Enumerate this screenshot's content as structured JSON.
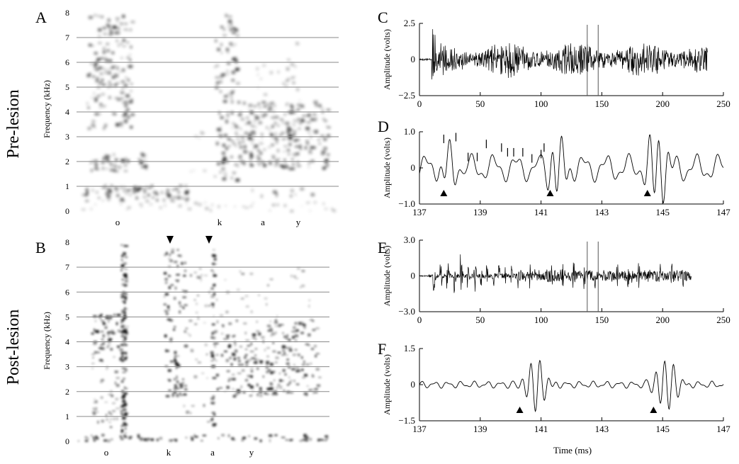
{
  "row_labels": {
    "pre": "Pre-lesion",
    "post": "Post-lesion"
  },
  "chart_data": [
    {
      "id": "A",
      "type": "heatmap",
      "panel_label": "A",
      "ylabel": "Frequency (kHz)",
      "ylim": [
        0,
        8
      ],
      "y_ticks": [
        "0",
        "1",
        "2",
        "3",
        "4",
        "5",
        "6",
        "7",
        "8"
      ],
      "segment_labels": [
        "o",
        "k",
        "a",
        "y"
      ],
      "grid": true
    },
    {
      "id": "B",
      "type": "heatmap",
      "panel_label": "B",
      "ylabel": "Frequency (kHz)",
      "ylim": [
        0,
        8
      ],
      "y_ticks": [
        "0",
        "1",
        "2",
        "3",
        "4",
        "5",
        "6",
        "7",
        "8"
      ],
      "segment_labels": [
        "o",
        "k",
        "a",
        "y"
      ],
      "grid": true
    },
    {
      "id": "C",
      "type": "line",
      "panel_label": "C",
      "ylabel": "Amplitude (volts)",
      "xlim": [
        0,
        250
      ],
      "ylim": [
        -2.5,
        2.5
      ],
      "x_ticks": [
        "0",
        "50",
        "100",
        "150",
        "200",
        "250"
      ],
      "y_ticks": [
        "2.5",
        "0",
        "−2.5"
      ],
      "signal_span_ms": [
        0,
        237
      ],
      "markers_ms": [
        138,
        147
      ]
    },
    {
      "id": "D",
      "type": "line",
      "panel_label": "D",
      "ylabel": "Amplitude (volts)",
      "xlim": [
        137,
        147
      ],
      "ylim": [
        -1.0,
        1.0
      ],
      "x_ticks": [
        "137",
        "139",
        "141",
        "143",
        "145",
        "147"
      ],
      "y_ticks": [
        "1.0",
        "0",
        "−1.0"
      ],
      "arrowheads_ms": [
        137.8,
        141.3,
        144.5
      ]
    },
    {
      "id": "E",
      "type": "line",
      "panel_label": "E",
      "ylabel": "Amplitude (volts)",
      "xlim": [
        0,
        250
      ],
      "ylim": [
        -3.0,
        3.0
      ],
      "x_ticks": [
        "0",
        "50",
        "100",
        "150",
        "200",
        "250"
      ],
      "y_ticks": [
        "3.0",
        "0",
        "−3.0"
      ],
      "signal_span_ms": [
        0,
        224
      ],
      "markers_ms": [
        138,
        147
      ]
    },
    {
      "id": "F",
      "type": "line",
      "panel_label": "F",
      "ylabel": "Amplitude (volts)",
      "xlabel": "Time (ms)",
      "xlim": [
        137,
        147
      ],
      "ylim": [
        -1.5,
        1.5
      ],
      "x_ticks": [
        "137",
        "139",
        "141",
        "143",
        "145",
        "147"
      ],
      "y_ticks": [
        "1.5",
        "0",
        "−1.5"
      ],
      "arrowheads_ms": [
        140.3,
        144.7
      ]
    }
  ]
}
